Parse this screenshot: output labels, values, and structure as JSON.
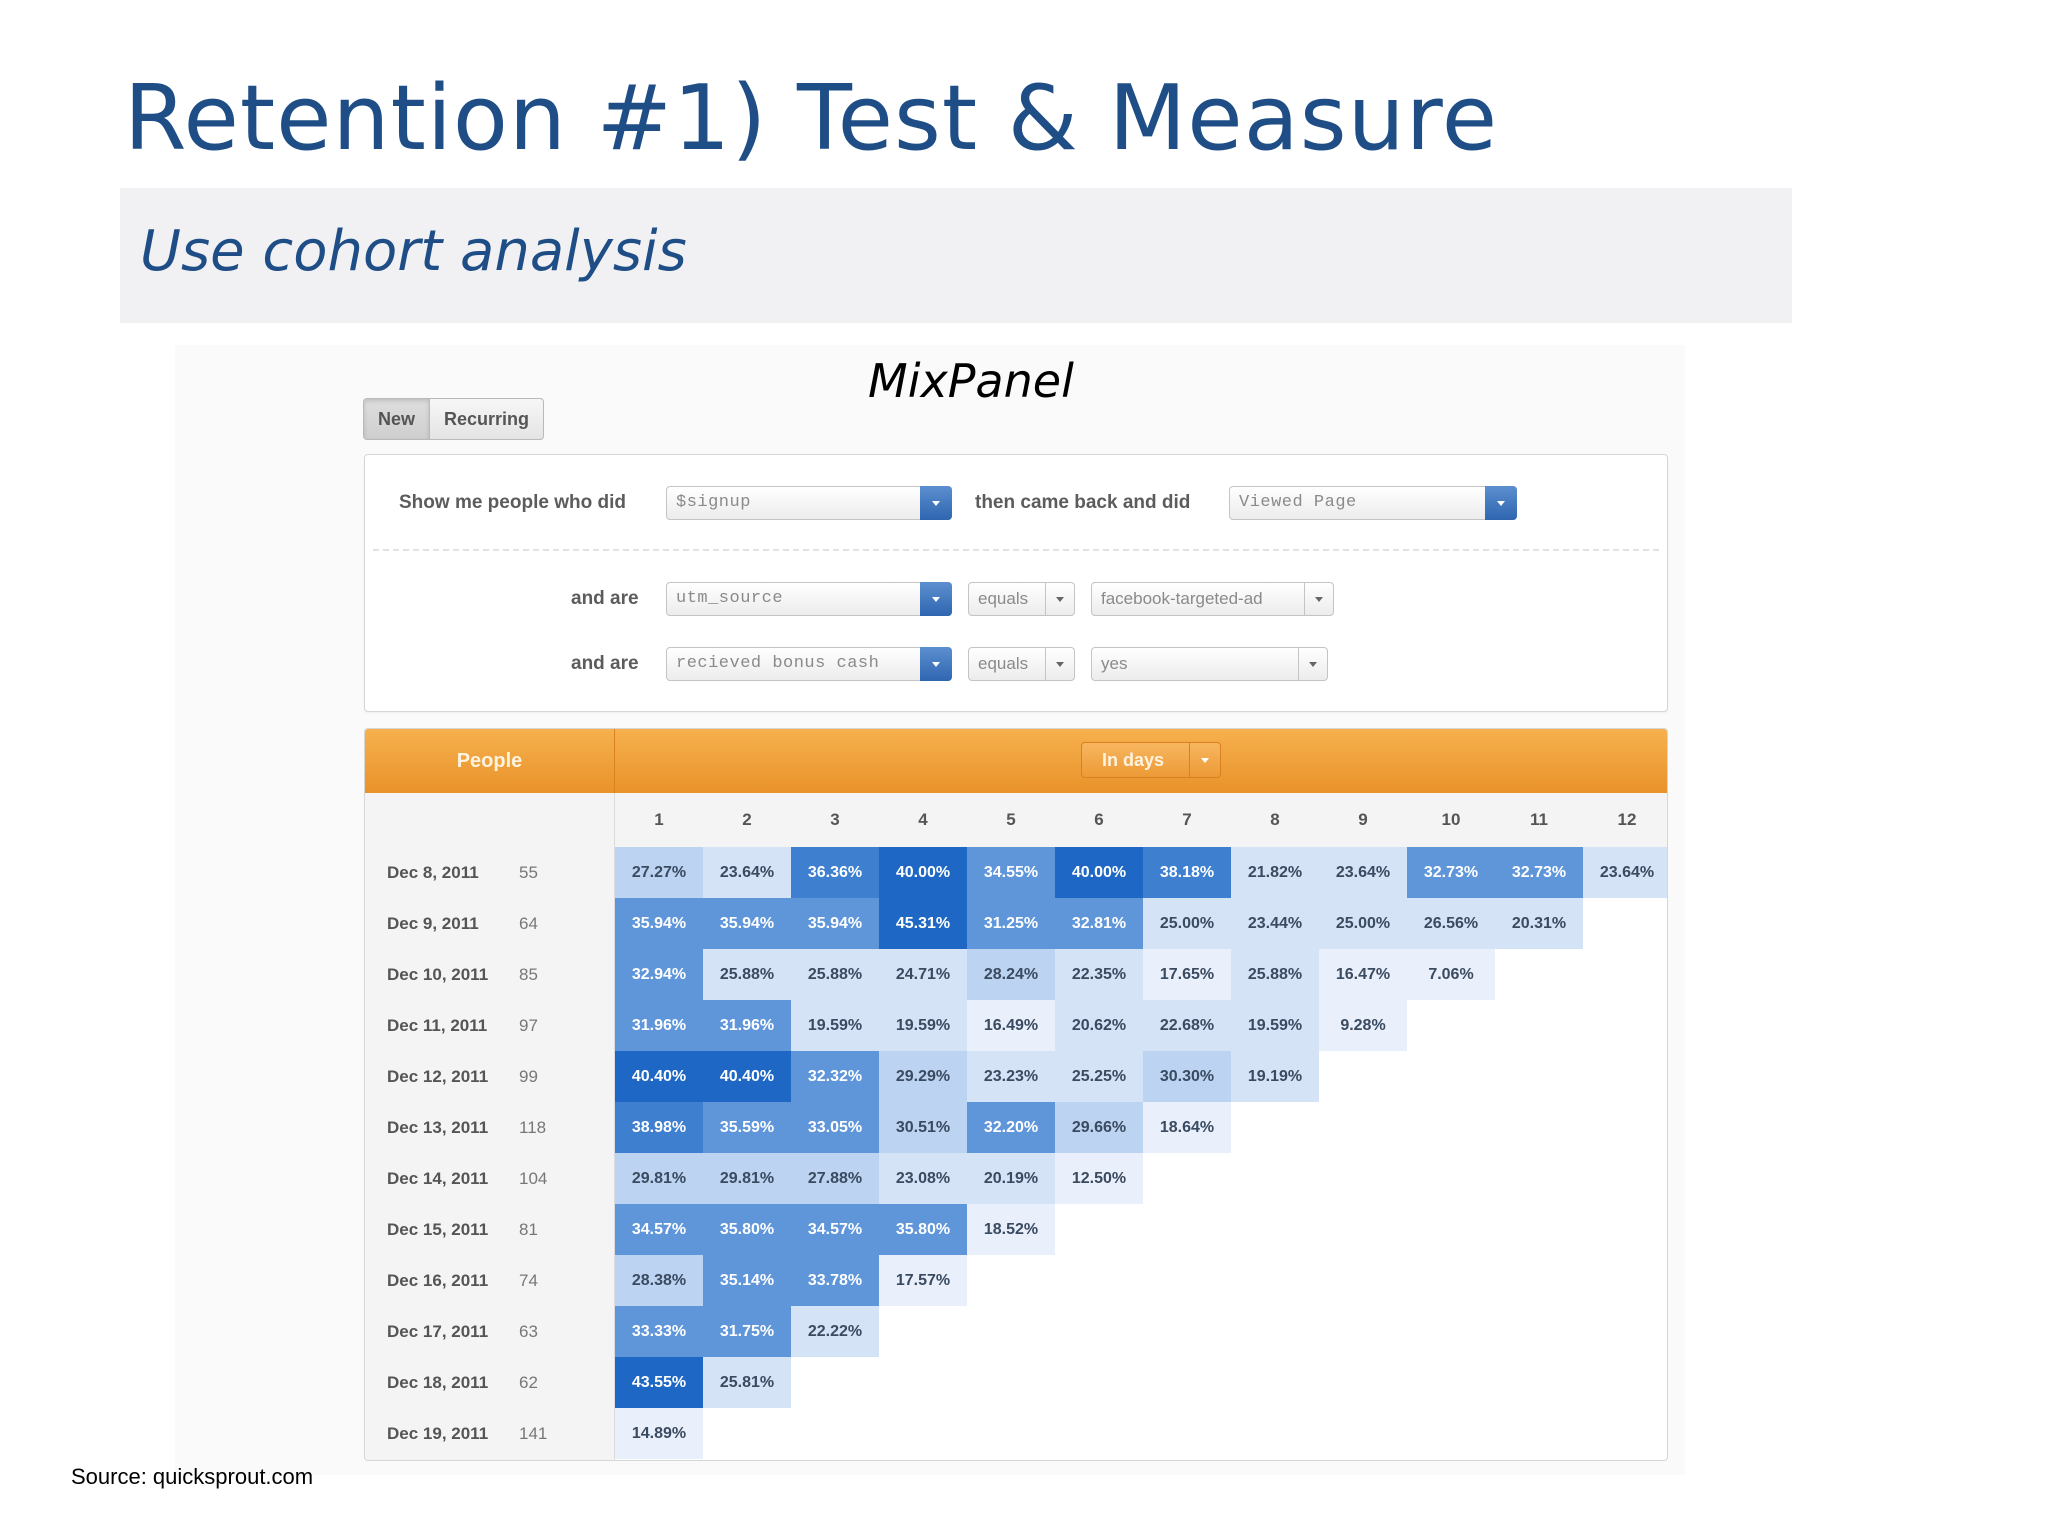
{
  "slide": {
    "title": "Retention #1) Test & Measure",
    "subtitle": "Use cohort analysis",
    "label": "MixPanel",
    "source": "Source: quicksprout.com"
  },
  "toggle": {
    "new_label": "New",
    "recurring_label": "Recurring",
    "active": "New"
  },
  "filters": {
    "show_label": "Show me people who did",
    "event1": "$signup",
    "then_label": "then came back and did",
    "event2": "Viewed Page",
    "and_are_label": "and are",
    "prop1": "utm_source",
    "op1": "equals",
    "val1": "facebook-targeted-ad",
    "prop2": "recieved bonus cash",
    "op2": "equals",
    "val2": "yes"
  },
  "retention": {
    "people_header": "People",
    "interval": "In days",
    "days": [
      "1",
      "2",
      "3",
      "4",
      "5",
      "6",
      "7",
      "8",
      "9",
      "10",
      "11",
      "12"
    ],
    "rows": [
      {
        "date": "Dec 8, 2011",
        "count": "55",
        "values": [
          "27.27%",
          "23.64%",
          "36.36%",
          "40.00%",
          "34.55%",
          "40.00%",
          "38.18%",
          "21.82%",
          "23.64%",
          "32.73%",
          "32.73%",
          "23.64%"
        ]
      },
      {
        "date": "Dec 9, 2011",
        "count": "64",
        "values": [
          "35.94%",
          "35.94%",
          "35.94%",
          "45.31%",
          "31.25%",
          "32.81%",
          "25.00%",
          "23.44%",
          "25.00%",
          "26.56%",
          "20.31%"
        ]
      },
      {
        "date": "Dec 10, 2011",
        "count": "85",
        "values": [
          "32.94%",
          "25.88%",
          "25.88%",
          "24.71%",
          "28.24%",
          "22.35%",
          "17.65%",
          "25.88%",
          "16.47%",
          "7.06%"
        ]
      },
      {
        "date": "Dec 11, 2011",
        "count": "97",
        "values": [
          "31.96%",
          "31.96%",
          "19.59%",
          "19.59%",
          "16.49%",
          "20.62%",
          "22.68%",
          "19.59%",
          "9.28%"
        ]
      },
      {
        "date": "Dec 12, 2011",
        "count": "99",
        "values": [
          "40.40%",
          "40.40%",
          "32.32%",
          "29.29%",
          "23.23%",
          "25.25%",
          "30.30%",
          "19.19%"
        ]
      },
      {
        "date": "Dec 13, 2011",
        "count": "118",
        "values": [
          "38.98%",
          "35.59%",
          "33.05%",
          "30.51%",
          "32.20%",
          "29.66%",
          "18.64%"
        ]
      },
      {
        "date": "Dec 14, 2011",
        "count": "104",
        "values": [
          "29.81%",
          "29.81%",
          "27.88%",
          "23.08%",
          "20.19%",
          "12.50%"
        ]
      },
      {
        "date": "Dec 15, 2011",
        "count": "81",
        "values": [
          "34.57%",
          "35.80%",
          "34.57%",
          "35.80%",
          "18.52%"
        ]
      },
      {
        "date": "Dec 16, 2011",
        "count": "74",
        "values": [
          "28.38%",
          "35.14%",
          "33.78%",
          "17.57%"
        ]
      },
      {
        "date": "Dec 17, 2011",
        "count": "63",
        "values": [
          "33.33%",
          "31.75%",
          "22.22%"
        ]
      },
      {
        "date": "Dec 18, 2011",
        "count": "62",
        "values": [
          "43.55%",
          "25.81%"
        ]
      },
      {
        "date": "Dec 19, 2011",
        "count": "141",
        "values": [
          "14.89%"
        ]
      }
    ]
  },
  "colors": {
    "title_blue": "#1f4e87",
    "header_orange": "#f0a03e",
    "dropdown_blue": "#3a72bb",
    "heat_darkest": "#1f67c4",
    "heat_lightest": "#e9f0fb"
  }
}
